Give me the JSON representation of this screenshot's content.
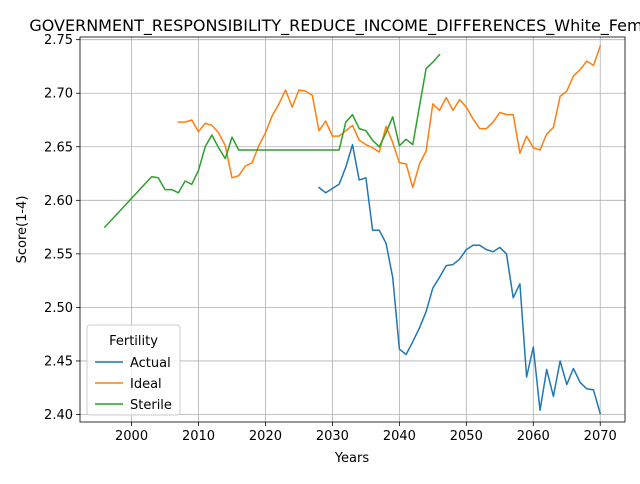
{
  "chart_data": {
    "type": "line",
    "title": "GOVERNMENT_RESPONSIBILITY_REDUCE_INCOME_DIFFERENCES_White_Female_",
    "xlabel": "Years",
    "ylabel": "Score(1-4)",
    "xlim": [
      1992.3,
      2073.7
    ],
    "ylim": [
      2.393,
      2.7525
    ],
    "xticks": [
      2000,
      2010,
      2020,
      2030,
      2040,
      2050,
      2060,
      2070
    ],
    "yticks": [
      2.4,
      2.45,
      2.5,
      2.55,
      2.6,
      2.65,
      2.7,
      2.75
    ],
    "xtick_labels": [
      "2000",
      "2010",
      "2020",
      "2030",
      "2040",
      "2050",
      "2060",
      "2070"
    ],
    "ytick_labels": [
      "2.40",
      "2.45",
      "2.50",
      "2.55",
      "2.60",
      "2.65",
      "2.70",
      "2.75"
    ],
    "grid": true,
    "legend": {
      "title": "Fertility",
      "position": "lower-left"
    },
    "series": [
      {
        "name": "Actual",
        "color": "#1f77b4",
        "points": [
          [
            2028,
            2.612
          ],
          [
            2029,
            2.607
          ],
          [
            2030,
            2.611
          ],
          [
            2031,
            2.615
          ],
          [
            2032,
            2.631
          ],
          [
            2033,
            2.652
          ],
          [
            2034,
            2.619
          ],
          [
            2035,
            2.621
          ],
          [
            2036,
            2.572
          ],
          [
            2037,
            2.572
          ],
          [
            2038,
            2.56
          ],
          [
            2039,
            2.528
          ],
          [
            2040,
            2.461
          ],
          [
            2041,
            2.456
          ],
          [
            2042,
            2.468
          ],
          [
            2043,
            2.481
          ],
          [
            2044,
            2.496
          ],
          [
            2045,
            2.518
          ],
          [
            2046,
            2.528
          ],
          [
            2047,
            2.539
          ],
          [
            2048,
            2.54
          ],
          [
            2049,
            2.545
          ],
          [
            2050,
            2.554
          ],
          [
            2051,
            2.558
          ],
          [
            2052,
            2.558
          ],
          [
            2053,
            2.554
          ],
          [
            2054,
            2.552
          ],
          [
            2055,
            2.556
          ],
          [
            2056,
            2.55
          ],
          [
            2057,
            2.509
          ],
          [
            2058,
            2.522
          ],
          [
            2059,
            2.435
          ],
          [
            2060,
            2.463
          ],
          [
            2061,
            2.404
          ],
          [
            2062,
            2.442
          ],
          [
            2063,
            2.417
          ],
          [
            2064,
            2.45
          ],
          [
            2065,
            2.428
          ],
          [
            2066,
            2.443
          ],
          [
            2067,
            2.43
          ],
          [
            2068,
            2.424
          ],
          [
            2069,
            2.423
          ],
          [
            2070,
            2.401
          ]
        ]
      },
      {
        "name": "Ideal",
        "color": "#ff7f0e",
        "points": [
          [
            2007,
            2.673
          ],
          [
            2008,
            2.673
          ],
          [
            2009,
            2.675
          ],
          [
            2010,
            2.664
          ],
          [
            2011,
            2.672
          ],
          [
            2012,
            2.67
          ],
          [
            2013,
            2.663
          ],
          [
            2014,
            2.651
          ],
          [
            2015,
            2.621
          ],
          [
            2016,
            2.623
          ],
          [
            2017,
            2.632
          ],
          [
            2018,
            2.635
          ],
          [
            2019,
            2.651
          ],
          [
            2020,
            2.663
          ],
          [
            2021,
            2.679
          ],
          [
            2022,
            2.69
          ],
          [
            2023,
            2.703
          ],
          [
            2024,
            2.687
          ],
          [
            2025,
            2.703
          ],
          [
            2026,
            2.702
          ],
          [
            2027,
            2.698
          ],
          [
            2028,
            2.665
          ],
          [
            2029,
            2.674
          ],
          [
            2030,
            2.66
          ],
          [
            2031,
            2.66
          ],
          [
            2032,
            2.665
          ],
          [
            2033,
            2.67
          ],
          [
            2034,
            2.656
          ],
          [
            2035,
            2.652
          ],
          [
            2036,
            2.649
          ],
          [
            2037,
            2.645
          ],
          [
            2038,
            2.669
          ],
          [
            2039,
            2.654
          ],
          [
            2040,
            2.635
          ],
          [
            2041,
            2.634
          ],
          [
            2042,
            2.612
          ],
          [
            2043,
            2.634
          ],
          [
            2044,
            2.646
          ],
          [
            2045,
            2.69
          ],
          [
            2046,
            2.684
          ],
          [
            2047,
            2.696
          ],
          [
            2048,
            2.684
          ],
          [
            2049,
            2.694
          ],
          [
            2050,
            2.687
          ],
          [
            2051,
            2.676
          ],
          [
            2052,
            2.667
          ],
          [
            2053,
            2.667
          ],
          [
            2054,
            2.673
          ],
          [
            2055,
            2.682
          ],
          [
            2056,
            2.68
          ],
          [
            2057,
            2.68
          ],
          [
            2058,
            2.644
          ],
          [
            2059,
            2.66
          ],
          [
            2060,
            2.649
          ],
          [
            2061,
            2.647
          ],
          [
            2062,
            2.662
          ],
          [
            2063,
            2.668
          ],
          [
            2064,
            2.697
          ],
          [
            2065,
            2.702
          ],
          [
            2066,
            2.716
          ],
          [
            2067,
            2.722
          ],
          [
            2068,
            2.73
          ],
          [
            2069,
            2.726
          ],
          [
            2070,
            2.744
          ]
        ]
      },
      {
        "name": "Sterile",
        "color": "#2ca02c",
        "points": [
          [
            1996,
            2.575
          ],
          [
            2003,
            2.622
          ],
          [
            2004,
            2.621
          ],
          [
            2005,
            2.61
          ],
          [
            2006,
            2.61
          ],
          [
            2007,
            2.607
          ],
          [
            2008,
            2.618
          ],
          [
            2009,
            2.615
          ],
          [
            2010,
            2.628
          ],
          [
            2011,
            2.65
          ],
          [
            2012,
            2.661
          ],
          [
            2013,
            2.649
          ],
          [
            2014,
            2.639
          ],
          [
            2015,
            2.659
          ],
          [
            2016,
            2.647
          ],
          [
            2017,
            2.647
          ],
          [
            2018,
            2.647
          ],
          [
            2019,
            2.647
          ],
          [
            2020,
            2.647
          ],
          [
            2021,
            2.647
          ],
          [
            2022,
            2.647
          ],
          [
            2023,
            2.647
          ],
          [
            2024,
            2.647
          ],
          [
            2025,
            2.647
          ],
          [
            2026,
            2.647
          ],
          [
            2027,
            2.647
          ],
          [
            2028,
            2.647
          ],
          [
            2029,
            2.647
          ],
          [
            2030,
            2.647
          ],
          [
            2031,
            2.647
          ],
          [
            2032,
            2.673
          ],
          [
            2033,
            2.68
          ],
          [
            2034,
            2.667
          ],
          [
            2035,
            2.665
          ],
          [
            2036,
            2.656
          ],
          [
            2037,
            2.65
          ],
          [
            2038,
            2.663
          ],
          [
            2039,
            2.678
          ],
          [
            2040,
            2.651
          ],
          [
            2041,
            2.657
          ],
          [
            2042,
            2.652
          ],
          [
            2043,
            2.688
          ],
          [
            2044,
            2.723
          ],
          [
            2045,
            2.729
          ],
          [
            2046,
            2.736
          ]
        ]
      }
    ]
  }
}
